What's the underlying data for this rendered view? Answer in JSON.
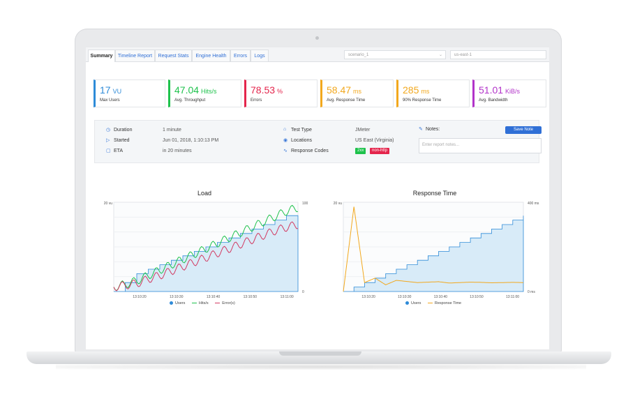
{
  "tabs": [
    "Summary",
    "Timeline Report",
    "Request Stats",
    "Engine Health",
    "Errors",
    "Logs"
  ],
  "selects": {
    "scenario": "scenario_1",
    "location": "us-east-1"
  },
  "kpis": [
    {
      "value": "17",
      "unit": "VU",
      "label": "Max Users",
      "color": "#2e8bd8"
    },
    {
      "value": "47.04",
      "unit": "Hits/s",
      "label": "Avg. Throughput",
      "color": "#1ec24c"
    },
    {
      "value": "78.53",
      "unit": "%",
      "label": "Errors",
      "color": "#e4254c"
    },
    {
      "value": "58.47",
      "unit": "ms",
      "label": "Avg. Response Time",
      "color": "#f2a81d"
    },
    {
      "value": "285",
      "unit": "ms",
      "label": "90% Response Time",
      "color": "#f2a81d"
    },
    {
      "value": "51.01",
      "unit": "KiB/s",
      "label": "Avg. Bandwidth",
      "color": "#b233c9"
    }
  ],
  "info": {
    "duration_label": "Duration",
    "duration": "1 minute",
    "started_label": "Started",
    "started": "Jun 01, 2018, 1:10:13 PM",
    "eta_label": "ETA",
    "eta": "in 20 minutes",
    "test_type_label": "Test Type",
    "test_type": "JMeter",
    "locations_label": "Locations",
    "locations": "US East (Virginia)",
    "response_codes_label": "Response Codes",
    "codes": [
      {
        "text": "2xx",
        "color": "#1ec24c"
      },
      {
        "text": "non-http",
        "color": "#e4254c"
      }
    ],
    "notes_label": "Notes:",
    "notes_placeholder": "Enter report notes...",
    "save_label": "Save Note"
  },
  "chart_data": [
    {
      "type": "line",
      "title": "Load",
      "xticks": [
        "13:10:20",
        "13:10:30",
        "13:10:40",
        "13:10:50",
        "13:11:00"
      ],
      "y_left_label": "20 vu",
      "y_right_top": "100",
      "y_right_bottom": "0",
      "series": [
        {
          "name": "Users",
          "color": "#2e8bd8",
          "values": [
            0,
            2,
            4,
            5,
            6,
            7,
            8,
            9,
            10,
            11,
            12,
            13,
            14,
            15,
            16,
            17,
            17
          ]
        },
        {
          "name": "Hits/s",
          "color": "#1ec24c",
          "values": [
            5,
            8,
            12,
            18,
            24,
            30,
            36,
            42,
            48,
            54,
            60,
            66,
            72,
            78,
            84,
            90,
            94
          ]
        },
        {
          "name": "Error(s)",
          "color": "#d23a62",
          "values": [
            5,
            7,
            9,
            14,
            18,
            23,
            28,
            33,
            38,
            43,
            48,
            53,
            58,
            63,
            68,
            72,
            75
          ]
        }
      ]
    },
    {
      "type": "line",
      "title": "Response Time",
      "xticks": [
        "13:10:20",
        "13:10:30",
        "13:10:40",
        "13:10:50",
        "13:11:00"
      ],
      "y_left_label": "20 vu",
      "y_right_top": "400 ms",
      "y_right_bottom": "0 ms",
      "series": [
        {
          "name": "Users",
          "color": "#2e8bd8",
          "values": [
            0,
            1,
            2,
            3,
            4,
            5,
            6,
            7,
            8,
            9,
            10,
            11,
            12,
            13,
            14,
            15,
            16,
            17
          ]
        },
        {
          "name": "Response Time",
          "color": "#f2a81d",
          "values": [
            0,
            380,
            40,
            60,
            30,
            50,
            45,
            40,
            42,
            44,
            38,
            40,
            42,
            41,
            39,
            40,
            41,
            40
          ]
        }
      ]
    }
  ]
}
